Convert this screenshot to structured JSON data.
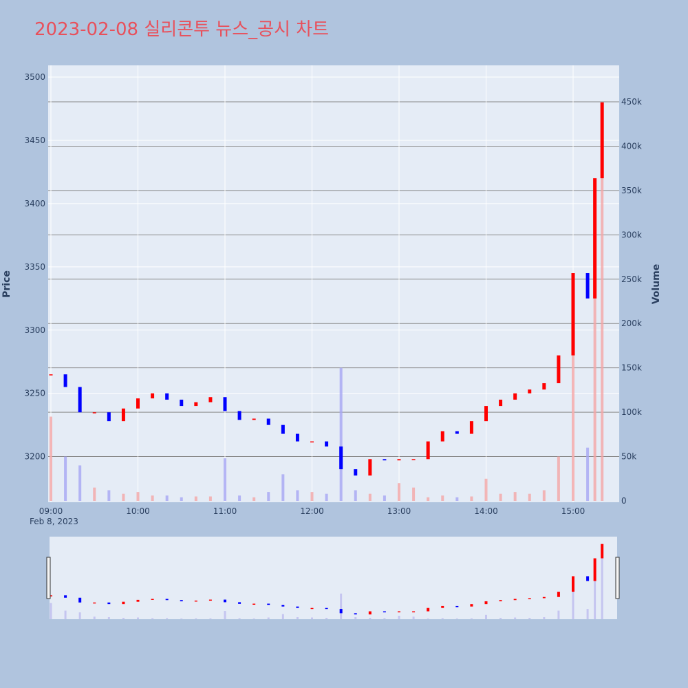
{
  "title": "2023-02-08 실리콘투 뉴스_공시 차트",
  "colors": {
    "paper": "#b0c4de",
    "plot_bg": "#e5ecf6",
    "up": "#ff0000",
    "down": "#0000ff",
    "title": "#e8505b"
  },
  "chart_data": {
    "type": "candlestick",
    "title": "2023-02-08 실리콘투 뉴스_공시 차트",
    "ylabel": "Price",
    "y2label": "Volume",
    "date_label": "Feb 8, 2023",
    "x_ticks": [
      "09:00",
      "10:00",
      "11:00",
      "12:00",
      "13:00",
      "14:00",
      "15:00"
    ],
    "y_ticks": [
      3200,
      3250,
      3300,
      3350,
      3400,
      3450,
      3500
    ],
    "y2_ticks": [
      {
        "value": 0,
        "label": "0"
      },
      {
        "value": 50000,
        "label": "50k"
      },
      {
        "value": 100000,
        "label": "100k"
      },
      {
        "value": 150000,
        "label": "150k"
      },
      {
        "value": 200000,
        "label": "200k"
      },
      {
        "value": 250000,
        "label": "250k"
      },
      {
        "value": 300000,
        "label": "300k"
      },
      {
        "value": 350000,
        "label": "350k"
      },
      {
        "value": 400000,
        "label": "400k"
      },
      {
        "value": 450000,
        "label": "450k"
      }
    ],
    "ylim": [
      3165,
      3505
    ],
    "y2lim": [
      0,
      475000
    ],
    "grid": true,
    "rangeslider": true,
    "series": [
      {
        "name": "price",
        "type": "candlestick",
        "time": [
          "09:00",
          "09:10",
          "09:20",
          "09:30",
          "09:40",
          "09:50",
          "10:00",
          "10:10",
          "10:20",
          "10:30",
          "10:40",
          "10:50",
          "11:00",
          "11:10",
          "11:20",
          "11:30",
          "11:40",
          "11:50",
          "12:00",
          "12:10",
          "12:20",
          "12:30",
          "12:40",
          "12:50",
          "13:00",
          "13:10",
          "13:20",
          "13:30",
          "13:40",
          "13:50",
          "14:00",
          "14:10",
          "14:20",
          "14:30",
          "14:40",
          "14:50",
          "15:00",
          "15:10",
          "15:15",
          "15:20"
        ],
        "close": [
          3265,
          3255,
          3235,
          3235,
          3228,
          3238,
          3246,
          3250,
          3245,
          3240,
          3243,
          3247,
          3236,
          3229,
          3230,
          3225,
          3218,
          3212,
          3212,
          3208,
          3190,
          3185,
          3198,
          3197,
          3198,
          3198,
          3212,
          3220,
          3218,
          3228,
          3240,
          3245,
          3250,
          3253,
          3258,
          3280,
          3345,
          3325,
          3420,
          3480
        ]
      },
      {
        "name": "volume",
        "type": "bar",
        "time": [
          "09:00",
          "09:10",
          "09:20",
          "09:30",
          "09:40",
          "09:50",
          "10:00",
          "10:10",
          "10:20",
          "10:30",
          "10:40",
          "10:50",
          "11:00",
          "11:10",
          "11:20",
          "11:30",
          "11:40",
          "11:50",
          "12:00",
          "12:10",
          "12:20",
          "12:30",
          "12:40",
          "12:50",
          "13:00",
          "13:10",
          "13:20",
          "13:30",
          "13:40",
          "13:50",
          "14:00",
          "14:10",
          "14:20",
          "14:30",
          "14:40",
          "14:50",
          "15:00",
          "15:10",
          "15:15",
          "15:20"
        ],
        "values": [
          95000,
          50000,
          40000,
          15000,
          12000,
          8000,
          10000,
          6000,
          6000,
          4000,
          5000,
          5000,
          48000,
          6000,
          4000,
          10000,
          30000,
          12000,
          10000,
          8000,
          150000,
          12000,
          8000,
          6000,
          20000,
          15000,
          4000,
          6000,
          4000,
          5000,
          25000,
          8000,
          10000,
          8000,
          12000,
          50000,
          200000,
          60000,
          350000,
          420000
        ]
      }
    ]
  }
}
